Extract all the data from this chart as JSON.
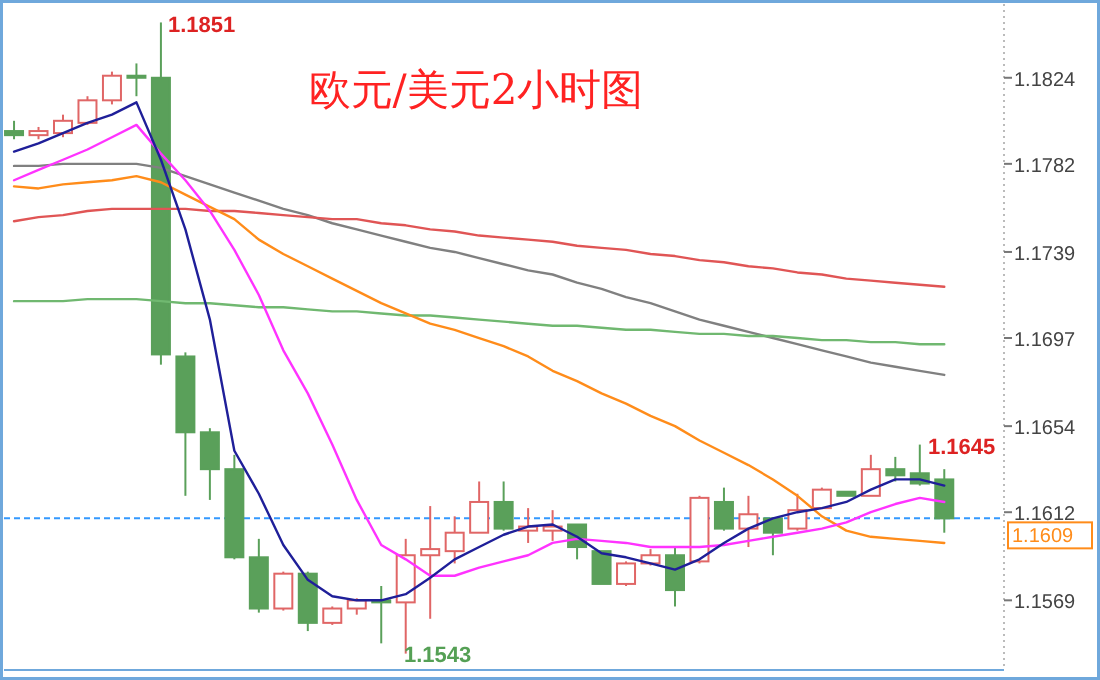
{
  "chart_data": {
    "type": "candlestick",
    "title": "欧元/美元2小时图",
    "categories": [
      null,
      null,
      null,
      null,
      null,
      null,
      null,
      null,
      null,
      null,
      null,
      null,
      null,
      null,
      null,
      null,
      null,
      null,
      null,
      null,
      null,
      null,
      null,
      null,
      null,
      null,
      null,
      null,
      null,
      null,
      null,
      null,
      null,
      null,
      null,
      null,
      null,
      null,
      null
    ],
    "ohlc": [
      [
        1.1798,
        1.1803,
        1.1794,
        1.1796
      ],
      [
        1.1796,
        1.18,
        1.1794,
        1.1798
      ],
      [
        1.1797,
        1.1806,
        1.1795,
        1.1803
      ],
      [
        1.1802,
        1.1815,
        1.1801,
        1.1813
      ],
      [
        1.1813,
        1.1827,
        1.1811,
        1.1825
      ],
      [
        1.1825,
        1.1831,
        1.1815,
        1.1824
      ],
      [
        1.1824,
        1.1851,
        1.1684,
        1.1689
      ],
      [
        1.1688,
        1.169,
        1.162,
        1.1651
      ],
      [
        1.1651,
        1.1653,
        1.1618,
        1.1633
      ],
      [
        1.1633,
        1.164,
        1.1589,
        1.159
      ],
      [
        1.159,
        1.1599,
        1.1563,
        1.1565
      ],
      [
        1.1565,
        1.1583,
        1.1564,
        1.1582
      ],
      [
        1.1582,
        1.1583,
        1.1554,
        1.1558
      ],
      [
        1.1558,
        1.1566,
        1.1557,
        1.1565
      ],
      [
        1.1565,
        1.157,
        1.1562,
        1.1569
      ],
      [
        1.1569,
        1.1576,
        1.1548,
        1.1568
      ],
      [
        1.1568,
        1.1599,
        1.1543,
        1.1591
      ],
      [
        1.1591,
        1.1615,
        1.156,
        1.1594
      ],
      [
        1.1593,
        1.161,
        1.1587,
        1.1602
      ],
      [
        1.1602,
        1.1627,
        1.1602,
        1.1617
      ],
      [
        1.1617,
        1.1627,
        1.1603,
        1.1604
      ],
      [
        1.1603,
        1.1614,
        1.1597,
        1.1605
      ],
      [
        1.1603,
        1.1613,
        1.1598,
        1.1605
      ],
      [
        1.1606,
        1.1606,
        1.1589,
        1.1595
      ],
      [
        1.1593,
        1.1593,
        1.1577,
        1.1577
      ],
      [
        1.1577,
        1.1588,
        1.1576,
        1.1587
      ],
      [
        1.1587,
        1.1594,
        1.1586,
        1.1591
      ],
      [
        1.1591,
        1.1595,
        1.1566,
        1.1574
      ],
      [
        1.1588,
        1.162,
        1.1587,
        1.1619
      ],
      [
        1.1617,
        1.1624,
        1.1603,
        1.1604
      ],
      [
        1.1604,
        1.162,
        1.1595,
        1.1611
      ],
      [
        1.1609,
        1.1609,
        1.1591,
        1.1602
      ],
      [
        1.1604,
        1.1621,
        1.1603,
        1.1613
      ],
      [
        1.1614,
        1.1624,
        1.1614,
        1.1623
      ],
      [
        1.1622,
        1.1622,
        1.162,
        1.162
      ],
      [
        1.162,
        1.164,
        1.162,
        1.1633
      ],
      [
        1.1633,
        1.1639,
        1.1627,
        1.163
      ],
      [
        1.1631,
        1.1645,
        1.1625,
        1.1626
      ],
      [
        1.1628,
        1.1633,
        1.1602,
        1.1609
      ]
    ],
    "series": [
      {
        "type": "line",
        "color": "#808080",
        "values": [
          1.1781,
          1.1781,
          1.1782,
          1.1782,
          1.1782,
          1.1782,
          1.178,
          1.1776,
          1.1772,
          1.1768,
          1.1764,
          1.176,
          1.1757,
          1.1753,
          1.175,
          1.1747,
          1.1744,
          1.1741,
          1.1739,
          1.1736,
          1.1733,
          1.173,
          1.1728,
          1.1724,
          1.1721,
          1.1717,
          1.1714,
          1.171,
          1.1706,
          1.1703,
          1.17,
          1.1697,
          1.1694,
          1.1691,
          1.1688,
          1.1685,
          1.1683,
          1.1681,
          1.1679
        ]
      },
      {
        "type": "line",
        "color": "#e05555",
        "values": [
          1.1754,
          1.1756,
          1.1757,
          1.1759,
          1.176,
          1.176,
          1.176,
          1.176,
          1.1759,
          1.1759,
          1.1758,
          1.1757,
          1.1756,
          1.1755,
          1.1755,
          1.1753,
          1.1752,
          1.175,
          1.1749,
          1.1747,
          1.1746,
          1.1745,
          1.1744,
          1.1742,
          1.1741,
          1.174,
          1.1738,
          1.1737,
          1.1735,
          1.1734,
          1.1732,
          1.1731,
          1.1729,
          1.1728,
          1.1726,
          1.1725,
          1.1724,
          1.1723,
          1.1722
        ]
      },
      {
        "type": "line",
        "color": "#70b870",
        "values": [
          1.1715,
          1.1715,
          1.1715,
          1.1716,
          1.1716,
          1.1716,
          1.1715,
          1.1714,
          1.1714,
          1.1713,
          1.1712,
          1.1712,
          1.1711,
          1.171,
          1.171,
          1.1709,
          1.1708,
          1.1708,
          1.1707,
          1.1706,
          1.1705,
          1.1704,
          1.1703,
          1.1703,
          1.1702,
          1.1701,
          1.1701,
          1.17,
          1.1699,
          1.1699,
          1.1698,
          1.1698,
          1.1697,
          1.1696,
          1.1696,
          1.1695,
          1.1695,
          1.1694,
          1.1694
        ]
      },
      {
        "type": "line",
        "color": "#ff8c1a",
        "values": [
          1.1771,
          1.177,
          1.1772,
          1.1773,
          1.1774,
          1.1776,
          1.1773,
          1.1767,
          1.1761,
          1.1755,
          1.1745,
          1.1738,
          1.1732,
          1.1726,
          1.172,
          1.1714,
          1.1709,
          1.1704,
          1.1701,
          1.1697,
          1.1693,
          1.1688,
          1.1681,
          1.1676,
          1.167,
          1.1665,
          1.1659,
          1.1654,
          1.1647,
          1.1641,
          1.1635,
          1.1628,
          1.162,
          1.161,
          1.1603,
          1.16,
          1.1599,
          1.1598,
          1.1597
        ]
      },
      {
        "type": "line",
        "color": "#ff33ff",
        "values": [
          1.1774,
          1.1779,
          1.1784,
          1.1789,
          1.1795,
          1.1801,
          1.1787,
          1.1774,
          1.1759,
          1.174,
          1.1718,
          1.1691,
          1.167,
          1.1645,
          1.1618,
          1.1596,
          1.1589,
          1.1581,
          1.1581,
          1.1585,
          1.1588,
          1.1591,
          1.1597,
          1.1599,
          1.1598,
          1.1597,
          1.1595,
          1.1595,
          1.1595,
          1.1596,
          1.1598,
          1.16,
          1.1602,
          1.1604,
          1.1607,
          1.1612,
          1.1616,
          1.1619,
          1.1617
        ]
      },
      {
        "type": "line",
        "color": "#1f1f99",
        "values": [
          1.1788,
          1.1792,
          1.1797,
          1.1802,
          1.1806,
          1.1812,
          1.1784,
          1.175,
          1.1706,
          1.1642,
          1.1621,
          1.1596,
          1.1579,
          1.1571,
          1.1569,
          1.1569,
          1.1572,
          1.158,
          1.1589,
          1.1595,
          1.1601,
          1.1605,
          1.1606,
          1.16,
          1.1592,
          1.159,
          1.1587,
          1.1584,
          1.1589,
          1.1597,
          1.1604,
          1.1609,
          1.1612,
          1.1614,
          1.1617,
          1.1623,
          1.1628,
          1.1628,
          1.1625
        ]
      }
    ],
    "ylim": [
      1.1535,
      1.186
    ],
    "yticks": [
      1.1824,
      1.1782,
      1.1739,
      1.1697,
      1.1654,
      1.1612,
      1.1569
    ],
    "tick_labels": "y",
    "ref_lines": [
      {
        "axis": "y",
        "value": 1.1609,
        "label": "1.1609",
        "color": "#3399ff",
        "line_style": "dashed"
      }
    ],
    "annotations": [
      "1.1851",
      "1.1543",
      "1.1645"
    ]
  }
}
